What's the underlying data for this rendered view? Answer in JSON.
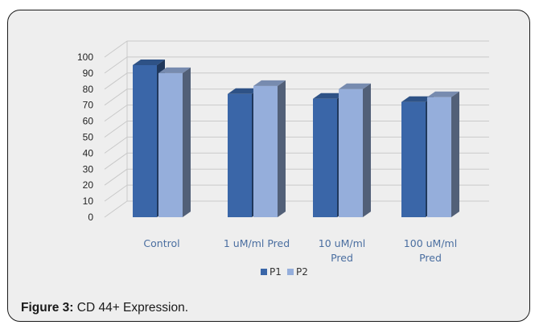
{
  "chart_data": {
    "type": "bar",
    "categories": [
      [
        "Control"
      ],
      [
        "1 uM/ml Pred"
      ],
      [
        "10 uM/ml",
        "Pred"
      ],
      [
        "100 uM/ml",
        "Pred"
      ]
    ],
    "series": [
      {
        "name": "P1",
        "values": [
          95,
          77,
          74,
          72
        ],
        "color": "#3a66a8"
      },
      {
        "name": "P2",
        "values": [
          90,
          82,
          80,
          75
        ],
        "color": "#95aedb"
      }
    ],
    "ylim": [
      0,
      100
    ],
    "yticks": [
      0,
      10,
      20,
      30,
      40,
      50,
      60,
      70,
      80,
      90,
      100
    ],
    "grid": true,
    "legend": "bottom",
    "style": "3d-clustered-column"
  },
  "caption": {
    "label": "Figure 3:",
    "text": " CD 44+ Expression."
  }
}
